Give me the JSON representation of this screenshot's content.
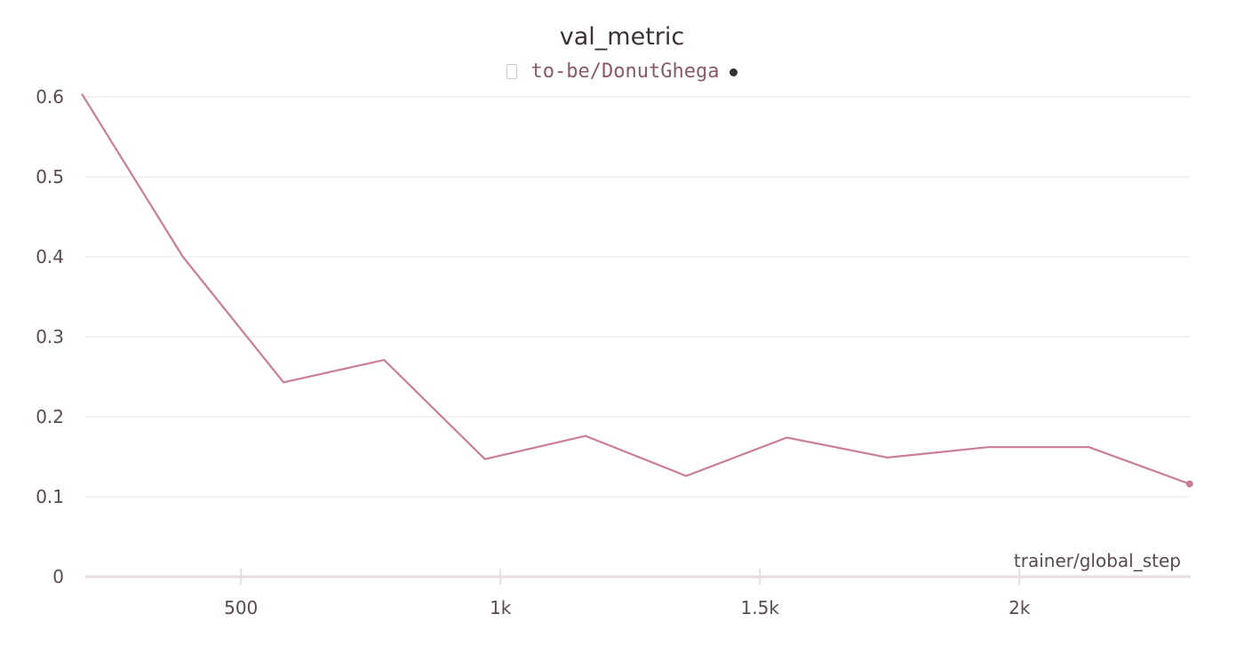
{
  "chart_data": {
    "type": "line",
    "title": "val_metric",
    "xlabel": "trainer/global_step",
    "ylabel": "",
    "xlim": [
      200,
      2330
    ],
    "ylim": [
      0,
      0.6
    ],
    "x_ticks": [
      500,
      1000,
      1500,
      2000
    ],
    "x_tick_labels": [
      "500",
      "1k",
      "1.5k",
      "2k"
    ],
    "y_ticks": [
      0,
      0.1,
      0.2,
      0.3,
      0.4,
      0.5,
      0.6
    ],
    "y_tick_labels": [
      "0",
      "0.1",
      "0.2",
      "0.3",
      "0.4",
      "0.5",
      "0.6"
    ],
    "grid": true,
    "legend_placement": "top-center",
    "series": [
      {
        "name": "to-be/DonutGhega",
        "color": "#c97d97",
        "x": [
          194,
          388,
          582,
          776,
          970,
          1164,
          1358,
          1552,
          1746,
          1940,
          2134,
          2328
        ],
        "y": [
          0.603,
          0.4,
          0.243,
          0.271,
          0.147,
          0.176,
          0.126,
          0.174,
          0.149,
          0.162,
          0.162,
          0.116
        ]
      }
    ]
  },
  "legend_icon": "run-visibility-icon",
  "legend_status_icon": "run-status-dot-icon"
}
